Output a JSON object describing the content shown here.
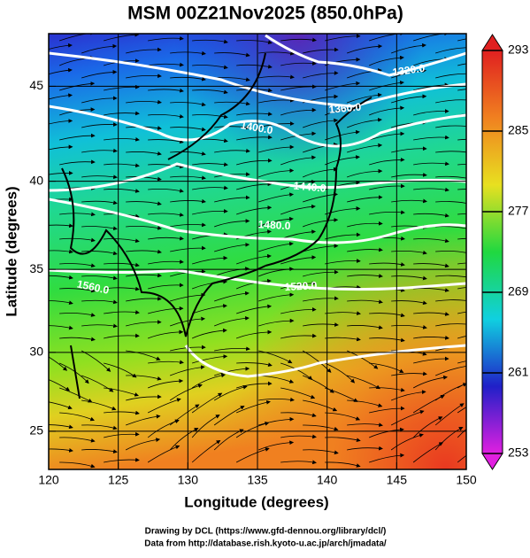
{
  "chart_data": {
    "type": "map",
    "title": "MSM 00Z21Nov2025 (850.0hPa)",
    "x_label": "Longitude (degrees)",
    "y_label": "Latitude  (degrees)",
    "projection": "mercator",
    "xlim": [
      120,
      150
    ],
    "ylim": [
      22.5,
      47.6
    ],
    "xticks": [
      120,
      125,
      130,
      135,
      140,
      145,
      150
    ],
    "yticks": [
      25,
      30,
      35,
      40,
      45
    ],
    "grid": true,
    "colorbar": {
      "clim": [
        253,
        293
      ],
      "ticks": [
        253,
        261,
        269,
        277,
        285,
        293
      ],
      "colors": [
        "#e020e0",
        "#2020c8",
        "#10d0e0",
        "#20d840",
        "#e8e020",
        "#f08020",
        "#e02020"
      ]
    },
    "contour_labels": [
      "1320.0",
      "1360.0",
      "1400.0",
      "1440.0",
      "1480.0",
      "1520.0",
      "1560.0"
    ],
    "credits": [
      "Drawing by DCL (https://www.gfd-dennou.org/library/dcl/)",
      "Data from http://database.rish.kyoto-u.ac.jp/arch/jmadata/"
    ]
  }
}
